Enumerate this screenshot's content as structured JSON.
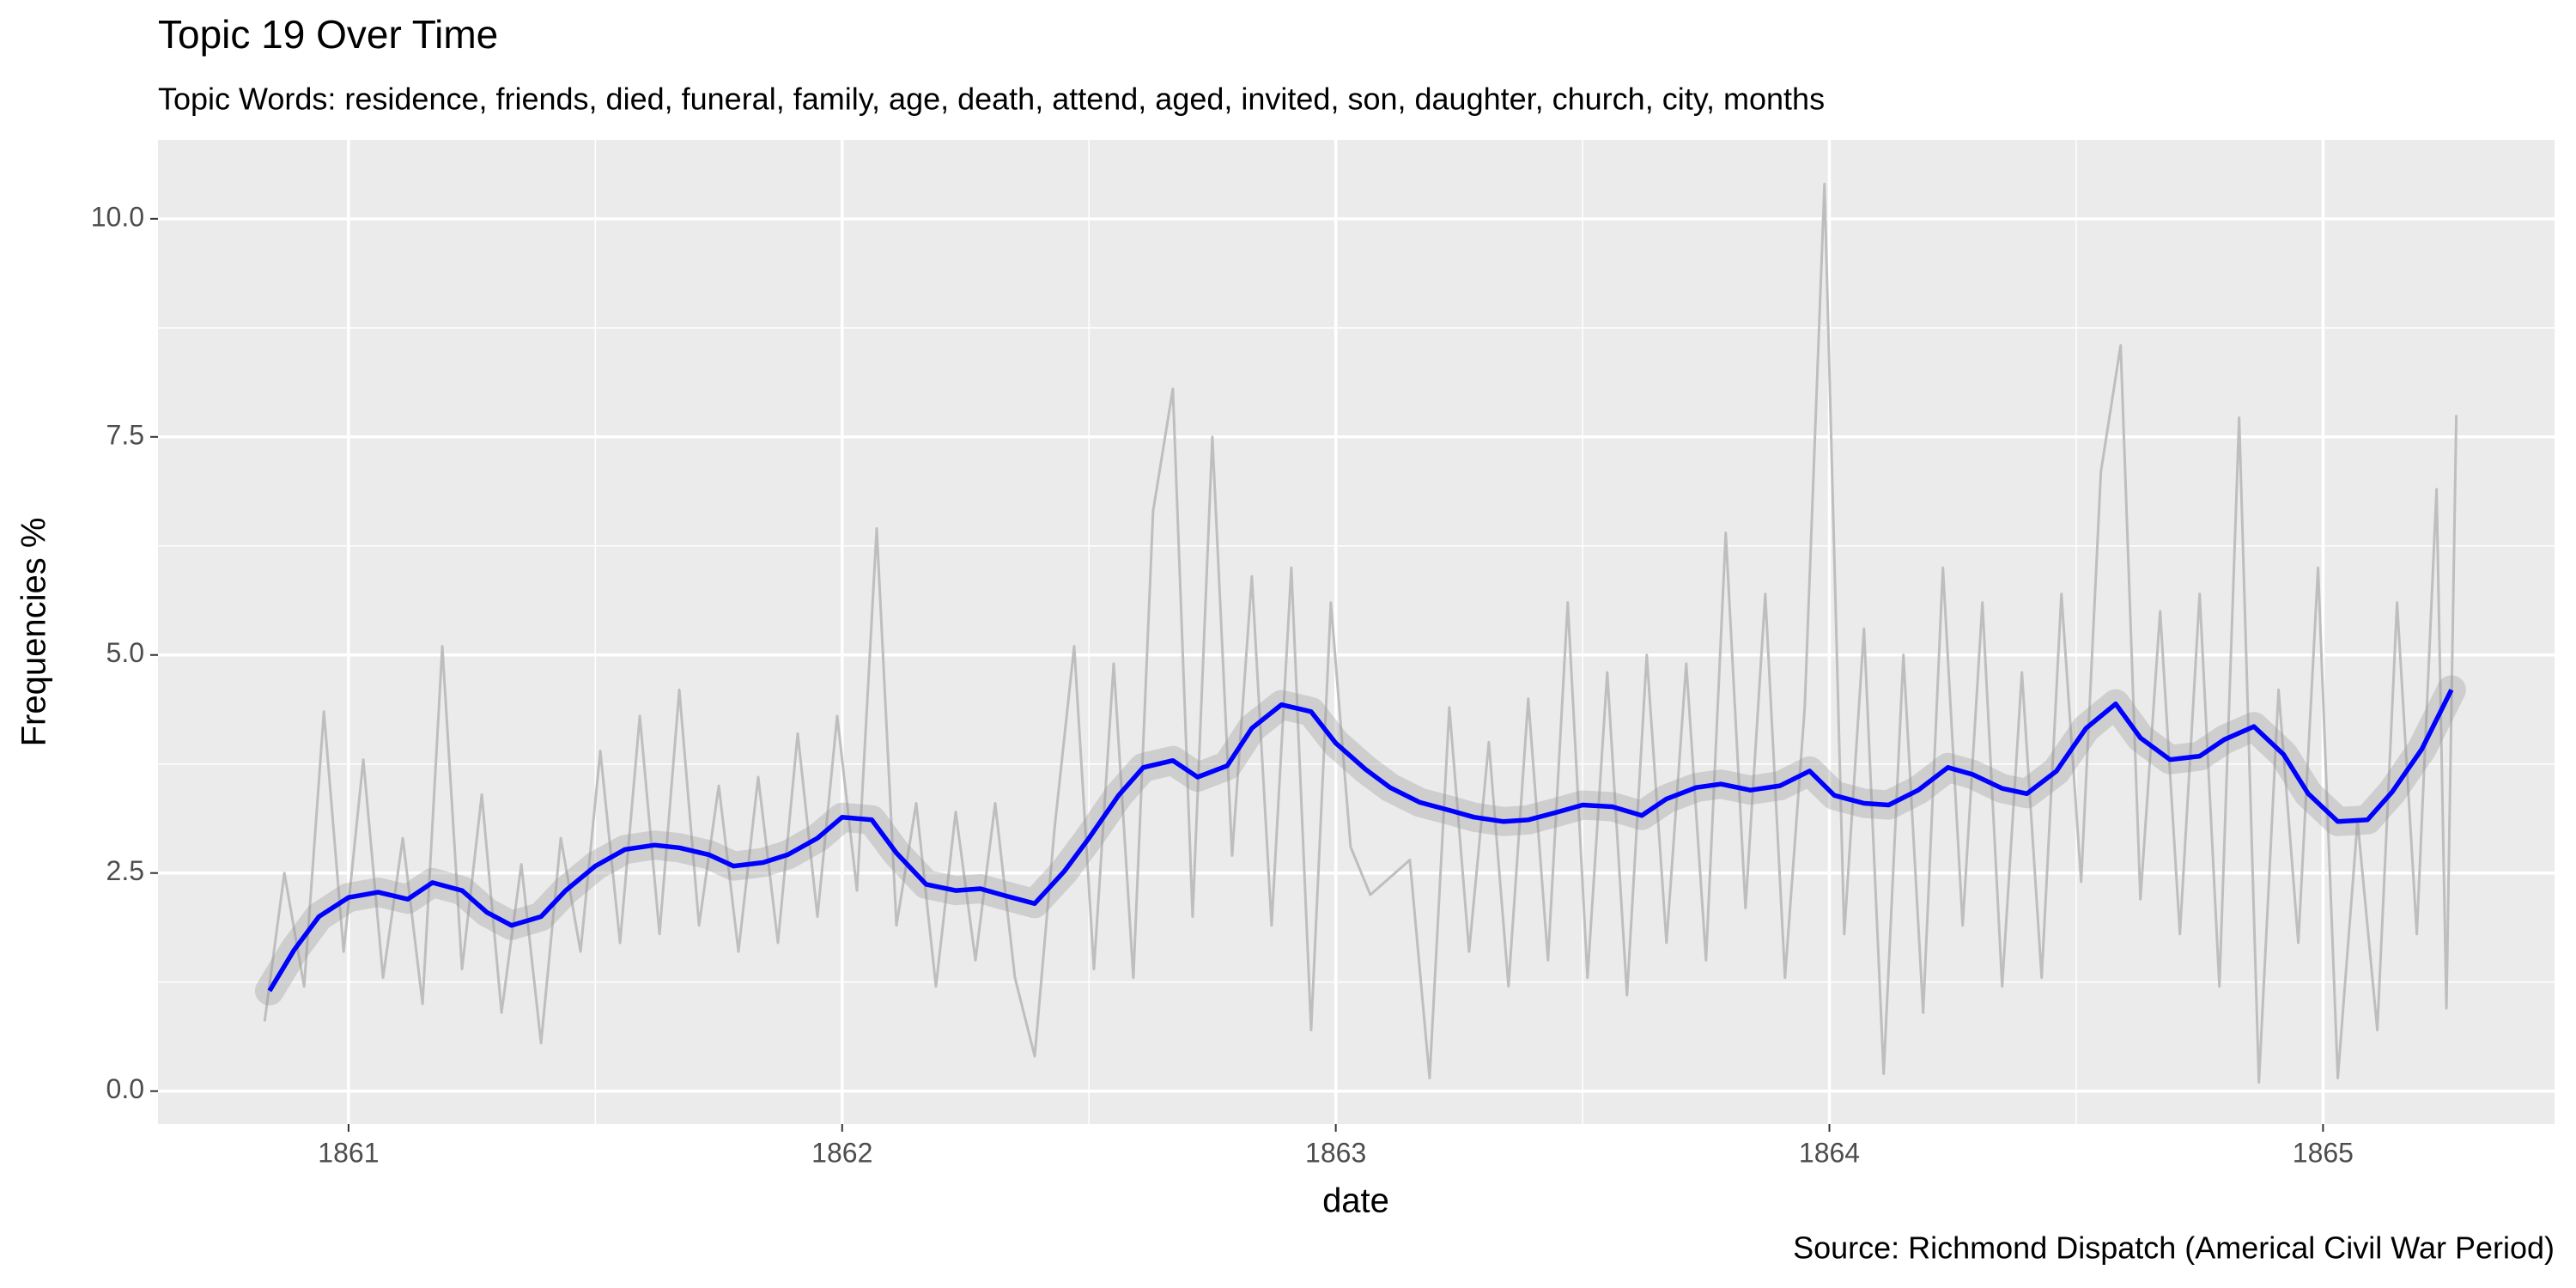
{
  "chart_data": {
    "type": "line",
    "title": "Topic 19 Over Time",
    "subtitle": "Topic Words: residence, friends, died, funeral, family, age, death, attend, aged, invited, son, daughter, church, city, months",
    "x_label": "date",
    "y_label": "Frequencies %",
    "caption": "Source: Richmond Dispatch (Americal Civil War Period)",
    "xlim": [
      1860.614,
      1865.469
    ],
    "xticks": [
      1861,
      1862,
      1863,
      1864,
      1865
    ],
    "ylim": [
      -0.377,
      10.904
    ],
    "yticks": [
      {
        "value": 0,
        "label": "0.0"
      },
      2.5,
      {
        "value": 5,
        "label": "5.0"
      },
      7.5,
      {
        "value": 10,
        "label": "10.0"
      }
    ],
    "grid": true,
    "series": [
      {
        "color": "#bebebe",
        "x": [
          1860.83,
          1860.87,
          1860.91,
          1860.95,
          1860.99,
          1861.03,
          1861.07,
          1861.11,
          1861.15,
          1861.19,
          1861.23,
          1861.27,
          1861.31,
          1861.35,
          1861.39,
          1861.43,
          1861.47,
          1861.51,
          1861.55,
          1861.59,
          1861.63,
          1861.67,
          1861.71,
          1861.75,
          1861.79,
          1861.83,
          1861.87,
          1861.91,
          1861.95,
          1861.99,
          1862.03,
          1862.07,
          1862.11,
          1862.15,
          1862.19,
          1862.23,
          1862.27,
          1862.31,
          1862.35,
          1862.39,
          1862.43,
          1862.47,
          1862.51,
          1862.55,
          1862.59,
          1862.63,
          1862.67,
          1862.71,
          1862.75,
          1862.79,
          1862.83,
          1862.87,
          1862.91,
          1862.95,
          1862.99,
          1863.03,
          1863.07,
          1863.11,
          1863.15,
          1863.19,
          1863.23,
          1863.27,
          1863.31,
          1863.35,
          1863.39,
          1863.43,
          1863.47,
          1863.51,
          1863.55,
          1863.59,
          1863.63,
          1863.67,
          1863.71,
          1863.75,
          1863.79,
          1863.83,
          1863.87,
          1863.91,
          1863.95,
          1863.99,
          1864.03,
          1864.07,
          1864.11,
          1864.15,
          1864.19,
          1864.23,
          1864.27,
          1864.31,
          1864.35,
          1864.39,
          1864.43,
          1864.47,
          1864.51,
          1864.55,
          1864.59,
          1864.63,
          1864.67,
          1864.71,
          1864.75,
          1864.79,
          1864.83,
          1864.87,
          1864.91,
          1864.95,
          1864.99,
          1865.03,
          1865.07,
          1865.11,
          1865.15,
          1865.19,
          1865.23,
          1865.25,
          1865.27
        ],
        "values": [
          0.8,
          2.5,
          1.2,
          4.35,
          1.6,
          3.8,
          1.3,
          2.9,
          1.0,
          5.1,
          1.4,
          3.4,
          0.9,
          2.6,
          0.55,
          2.9,
          1.6,
          3.9,
          1.7,
          4.3,
          1.8,
          4.6,
          1.9,
          3.5,
          1.6,
          3.6,
          1.7,
          4.1,
          2.0,
          4.3,
          2.3,
          6.45,
          1.9,
          3.3,
          1.2,
          3.2,
          1.5,
          3.3,
          1.3,
          0.4,
          3.0,
          5.1,
          1.4,
          4.9,
          1.3,
          6.65,
          8.05,
          2.0,
          7.5,
          2.7,
          5.9,
          1.9,
          6.0,
          0.7,
          5.6,
          2.8,
          2.25,
          2.45,
          2.65,
          0.15,
          4.4,
          1.6,
          4.0,
          1.2,
          4.5,
          1.5,
          5.6,
          1.3,
          4.8,
          1.1,
          5.0,
          1.7,
          4.9,
          1.5,
          6.4,
          2.1,
          5.7,
          1.3,
          4.4,
          10.4,
          1.8,
          5.3,
          0.2,
          5.0,
          0.9,
          6.0,
          1.9,
          5.6,
          1.2,
          4.8,
          1.3,
          5.7,
          2.4,
          7.1,
          8.55,
          2.2,
          5.5,
          1.8,
          5.7,
          1.2,
          7.72,
          0.1,
          4.6,
          1.7,
          6.0,
          0.15,
          3.1,
          0.7,
          5.6,
          1.8,
          6.9,
          0.95,
          7.75
        ]
      },
      {
        "color": "#0000ff",
        "x": [
          1860.84,
          1860.89,
          1860.94,
          1861.0,
          1861.06,
          1861.12,
          1861.17,
          1861.23,
          1861.28,
          1861.33,
          1861.39,
          1861.44,
          1861.5,
          1861.56,
          1861.62,
          1861.67,
          1861.73,
          1861.78,
          1861.84,
          1861.89,
          1861.95,
          1862.0,
          1862.06,
          1862.11,
          1862.17,
          1862.23,
          1862.28,
          1862.33,
          1862.39,
          1862.45,
          1862.5,
          1862.56,
          1862.61,
          1862.67,
          1862.72,
          1862.78,
          1862.83,
          1862.89,
          1862.95,
          1863.0,
          1863.06,
          1863.11,
          1863.17,
          1863.23,
          1863.28,
          1863.34,
          1863.39,
          1863.45,
          1863.5,
          1863.56,
          1863.62,
          1863.67,
          1863.73,
          1863.78,
          1863.84,
          1863.9,
          1863.96,
          1864.01,
          1864.07,
          1864.12,
          1864.18,
          1864.24,
          1864.29,
          1864.35,
          1864.4,
          1864.46,
          1864.52,
          1864.58,
          1864.63,
          1864.69,
          1864.75,
          1864.8,
          1864.86,
          1864.92,
          1864.97,
          1865.03,
          1865.09,
          1865.14,
          1865.2,
          1865.26
        ],
        "values": [
          1.15,
          1.62,
          2.0,
          2.22,
          2.28,
          2.2,
          2.39,
          2.3,
          2.05,
          1.9,
          2.0,
          2.3,
          2.58,
          2.77,
          2.82,
          2.79,
          2.71,
          2.58,
          2.62,
          2.71,
          2.9,
          3.14,
          3.11,
          2.73,
          2.37,
          2.3,
          2.32,
          2.24,
          2.15,
          2.52,
          2.9,
          3.39,
          3.71,
          3.79,
          3.6,
          3.73,
          4.16,
          4.43,
          4.35,
          3.99,
          3.69,
          3.48,
          3.31,
          3.22,
          3.14,
          3.09,
          3.11,
          3.2,
          3.28,
          3.26,
          3.16,
          3.35,
          3.48,
          3.52,
          3.45,
          3.5,
          3.67,
          3.39,
          3.3,
          3.28,
          3.45,
          3.71,
          3.63,
          3.47,
          3.41,
          3.67,
          4.16,
          4.44,
          4.05,
          3.8,
          3.84,
          4.03,
          4.18,
          3.86,
          3.41,
          3.09,
          3.11,
          3.43,
          3.92,
          4.6
        ]
      }
    ]
  }
}
